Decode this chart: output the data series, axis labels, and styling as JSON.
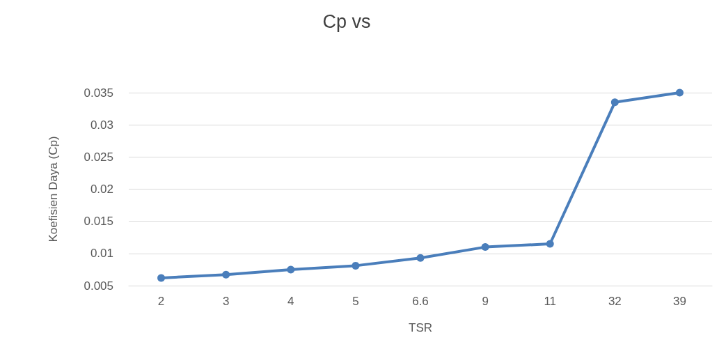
{
  "chart_data": {
    "type": "line",
    "title": "Cp vs",
    "xlabel": "TSR",
    "ylabel": "Koefisien Daya (Cp)",
    "categories": [
      "2",
      "3",
      "4",
      "5",
      "6.6",
      "9",
      "11",
      "32",
      "39"
    ],
    "series": [
      {
        "color": "#4a7ebb",
        "values": [
          0.0062,
          0.0067,
          0.0075,
          0.0081,
          0.0093,
          0.011,
          0.0115,
          0.0335,
          0.035
        ]
      }
    ],
    "ylim": [
      0.005,
      0.035
    ],
    "yticks": [
      0.005,
      0.01,
      0.015,
      0.02,
      0.025,
      0.03,
      0.035
    ],
    "grid": "y",
    "marker": "circle",
    "line_style": "solid"
  }
}
